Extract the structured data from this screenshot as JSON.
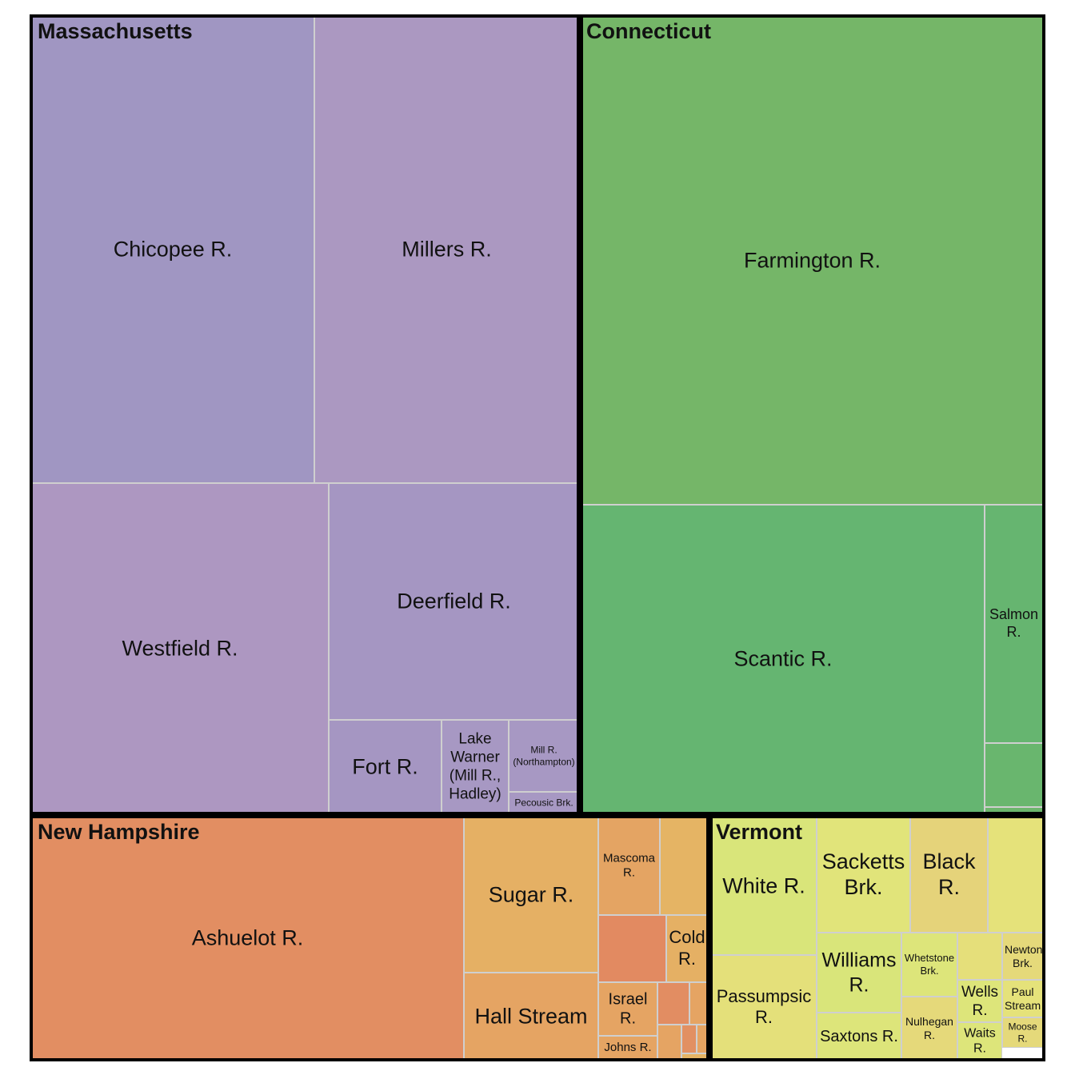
{
  "chart_data": {
    "type": "treemap",
    "groups": [
      {
        "name": "Massachusetts",
        "children": [
          {
            "name": "Chicopee R.",
            "color": "#a096c2"
          },
          {
            "name": "Millers R.",
            "color": "#ab98c1"
          },
          {
            "name": "Westfield R.",
            "color": "#ad97c1"
          },
          {
            "name": "Deerfield R.",
            "color": "#a596c2"
          },
          {
            "name": "Fort R.",
            "color": "#a596c2"
          },
          {
            "name": "Lake Warner (Mill R., Hadley)",
            "color": "#a798c3"
          },
          {
            "name": "Mill R. (Northampton)",
            "color": "#a798c3"
          },
          {
            "name": "Pecousic Brk.",
            "color": "#a798c3"
          }
        ]
      },
      {
        "name": "Connecticut",
        "children": [
          {
            "name": "Farmington R.",
            "color": "#75b668"
          },
          {
            "name": "Scantic R.",
            "color": "#65b571"
          },
          {
            "name": "Salmon R.",
            "color": "#66b570"
          },
          {
            "name": "",
            "color": "#69b66e"
          },
          {
            "name": "",
            "color": "#6cb66c"
          }
        ]
      },
      {
        "name": "New Hampshire",
        "children": [
          {
            "name": "Ashuelot R.",
            "color": "#e28e62"
          },
          {
            "name": "Sugar R.",
            "color": "#e5b064"
          },
          {
            "name": "Hall Stream",
            "color": "#e5a463"
          },
          {
            "name": "Mascoma R.",
            "color": "#e4a463"
          },
          {
            "name": "",
            "color": "#e5b464"
          },
          {
            "name": "",
            "color": "#e28a61"
          },
          {
            "name": "Cold R.",
            "color": "#e5b064"
          },
          {
            "name": "Israel R.",
            "color": "#e5a463"
          },
          {
            "name": "Johns R.",
            "color": "#e5a463"
          },
          {
            "name": "",
            "color": "#e28d62"
          },
          {
            "name": "",
            "color": "#e5a463"
          },
          {
            "name": "",
            "color": "#e5a463"
          },
          {
            "name": "",
            "color": "#e29062"
          },
          {
            "name": "",
            "color": "#e5a463"
          },
          {
            "name": "",
            "color": "#e5b464"
          }
        ]
      },
      {
        "name": "Vermont",
        "children": [
          {
            "name": "White R.",
            "color": "#d9e57a"
          },
          {
            "name": "Passumpsic R.",
            "color": "#e4e07a"
          },
          {
            "name": "Sacketts Brk.",
            "color": "#e1e47a"
          },
          {
            "name": "Black R.",
            "color": "#e5d37a"
          },
          {
            "name": "",
            "color": "#e5e27a"
          },
          {
            "name": "Williams R.",
            "color": "#d9e57a"
          },
          {
            "name": "Saxtons R.",
            "color": "#dde57a"
          },
          {
            "name": "Whetstone Brk.",
            "color": "#dde57a"
          },
          {
            "name": "Nulhegan R.",
            "color": "#e5d97a"
          },
          {
            "name": "",
            "color": "#e5df7a"
          },
          {
            "name": "Newton Brk.",
            "color": "#e5d97a"
          },
          {
            "name": "Wells R.",
            "color": "#dde57a"
          },
          {
            "name": "Waits R.",
            "color": "#dde57a"
          },
          {
            "name": "Paul Stream",
            "color": "#e5e27a"
          },
          {
            "name": "Moose R.",
            "color": "#e5d97a"
          }
        ]
      }
    ]
  }
}
